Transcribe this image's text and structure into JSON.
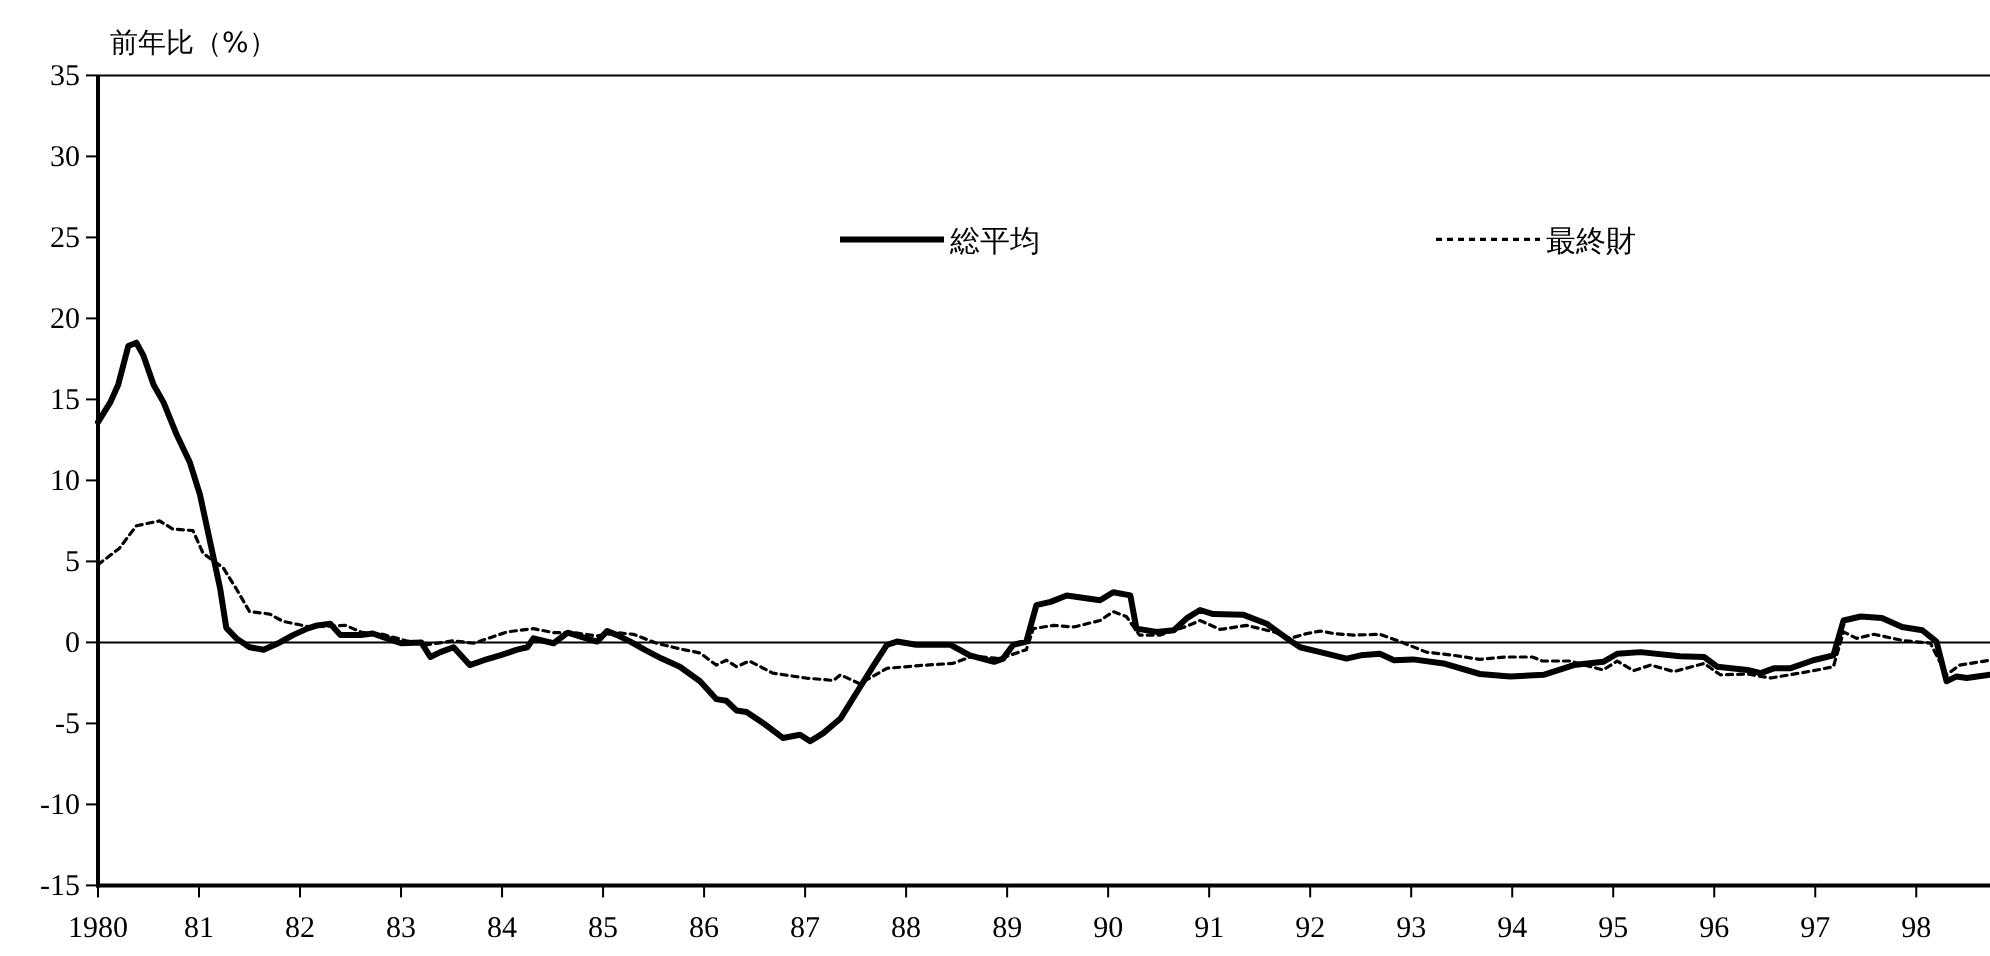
{
  "chart_data": {
    "type": "line",
    "ylabel": "前年比（%）",
    "xlim": [
      1980,
      1998.73
    ],
    "xticks": [
      1980,
      {
        "value": 1981,
        "label": "81"
      },
      {
        "value": 1982,
        "label": "82"
      },
      {
        "value": 1983,
        "label": "83"
      },
      {
        "value": 1984,
        "label": "84"
      },
      {
        "value": 1985,
        "label": "85"
      },
      {
        "value": 1986,
        "label": "86"
      },
      {
        "value": 1987,
        "label": "87"
      },
      {
        "value": 1988,
        "label": "88"
      },
      {
        "value": 1989,
        "label": "89"
      },
      {
        "value": 1990,
        "label": "90"
      },
      {
        "value": 1991,
        "label": "91"
      },
      {
        "value": 1992,
        "label": "92"
      },
      {
        "value": 1993,
        "label": "93"
      },
      {
        "value": 1994,
        "label": "94"
      },
      {
        "value": 1995,
        "label": "95"
      },
      {
        "value": 1996,
        "label": "96"
      },
      {
        "value": 1997,
        "label": "97"
      },
      {
        "value": 1998,
        "label": "98"
      }
    ],
    "ylim": [
      -15,
      35
    ],
    "yticks": [
      -15,
      -10,
      -5,
      0,
      5,
      10,
      15,
      20,
      25,
      30,
      35
    ],
    "grid": false,
    "legend": "top",
    "marker": "none",
    "ref_lines": [
      {
        "axis": "y",
        "value": 0
      }
    ],
    "series": [
      {
        "name": "総平均",
        "color": "#000000",
        "line_style": "solid",
        "x": [
          1980.0,
          1980.12,
          1980.2,
          1980.3,
          1980.38,
          1980.45,
          1980.55,
          1980.65,
          1980.78,
          1980.91,
          1981.01,
          1981.11,
          1981.21,
          1981.27,
          1981.37,
          1981.5,
          1981.64,
          1981.8,
          1981.93,
          1982.07,
          1982.17,
          1982.3,
          1982.4,
          1982.6,
          1982.72,
          1982.86,
          1983.0,
          1983.2,
          1983.29,
          1983.39,
          1983.52,
          1983.68,
          1983.82,
          1983.98,
          1984.15,
          1984.25,
          1984.31,
          1984.51,
          1984.65,
          1984.81,
          1984.94,
          1985.04,
          1985.14,
          1985.27,
          1985.41,
          1985.58,
          1985.76,
          1985.96,
          1986.12,
          1986.22,
          1986.32,
          1986.42,
          1986.59,
          1986.78,
          1986.95,
          1987.05,
          1987.18,
          1987.35,
          1987.54,
          1987.68,
          1987.81,
          1987.91,
          1988.1,
          1988.44,
          1988.63,
          1988.87,
          1988.96,
          1989.06,
          1989.19,
          1989.29,
          1989.43,
          1989.59,
          1989.92,
          1990.05,
          1990.22,
          1990.28,
          1990.48,
          1990.65,
          1990.78,
          1990.91,
          1991.04,
          1991.34,
          1991.57,
          1991.77,
          1991.9,
          1992.1,
          1992.36,
          1992.5,
          1992.69,
          1992.83,
          1993.02,
          1993.32,
          1993.68,
          1993.98,
          1994.31,
          1994.61,
          1994.9,
          1995.04,
          1995.27,
          1995.66,
          1995.9,
          1996.03,
          1996.33,
          1996.46,
          1996.59,
          1996.75,
          1996.98,
          1997.18,
          1997.28,
          1997.45,
          1997.66,
          1997.86,
          1998.06,
          1998.2,
          1998.3,
          1998.4,
          1998.5,
          1998.73
        ],
        "values": [
          13.6,
          14.8,
          15.9,
          18.3,
          18.5,
          17.7,
          15.9,
          14.8,
          12.8,
          11.1,
          9.1,
          6.2,
          3.3,
          0.9,
          0.25,
          -0.3,
          -0.45,
          0,
          0.45,
          0.85,
          1.05,
          1.15,
          0.45,
          0.45,
          0.55,
          0.25,
          -0.05,
          0,
          -0.9,
          -0.6,
          -0.3,
          -1.4,
          -1.1,
          -0.8,
          -0.45,
          -0.3,
          0.25,
          -0.05,
          0.6,
          0.3,
          0.05,
          0.7,
          0.45,
          0.05,
          -0.45,
          -1.0,
          -1.5,
          -2.4,
          -3.5,
          -3.6,
          -4.2,
          -4.3,
          -5.0,
          -5.9,
          -5.7,
          -6.1,
          -5.6,
          -4.7,
          -2.8,
          -1.4,
          -0.15,
          0.05,
          -0.15,
          -0.15,
          -0.8,
          -1.2,
          -1.0,
          -0.15,
          0.05,
          2.3,
          2.5,
          2.9,
          2.6,
          3.1,
          2.9,
          0.85,
          0.65,
          0.75,
          1.5,
          2.0,
          1.75,
          1.7,
          1.15,
          0.25,
          -0.3,
          -0.6,
          -1.0,
          -0.8,
          -0.7,
          -1.1,
          -1.05,
          -1.3,
          -1.95,
          -2.1,
          -2.0,
          -1.4,
          -1.2,
          -0.7,
          -0.6,
          -0.85,
          -0.9,
          -1.5,
          -1.7,
          -1.9,
          -1.6,
          -1.6,
          -1.1,
          -0.8,
          1.35,
          1.6,
          1.5,
          0.95,
          0.75,
          0.05,
          -2.4,
          -2.1,
          -2.2,
          -2.0
        ]
      },
      {
        "name": "最終財",
        "color": "#000000",
        "line_style": "dotted",
        "x": [
          1980.0,
          1980.21,
          1980.38,
          1980.61,
          1980.74,
          1980.94,
          1981.04,
          1981.24,
          1981.37,
          1981.5,
          1981.7,
          1981.83,
          1982.1,
          1982.45,
          1982.62,
          1982.82,
          1983.05,
          1983.25,
          1983.52,
          1983.72,
          1984.05,
          1984.31,
          1984.51,
          1984.71,
          1984.94,
          1985.14,
          1985.3,
          1985.53,
          1985.76,
          1985.96,
          1986.12,
          1986.22,
          1986.32,
          1986.45,
          1986.68,
          1987.01,
          1987.28,
          1987.35,
          1987.54,
          1987.81,
          1988.2,
          1988.46,
          1988.66,
          1988.93,
          1989.19,
          1989.26,
          1989.46,
          1989.66,
          1989.92,
          1990.05,
          1990.18,
          1990.31,
          1990.51,
          1990.78,
          1990.91,
          1991.11,
          1991.37,
          1991.64,
          1991.8,
          1991.97,
          1992.1,
          1992.23,
          1992.43,
          1992.69,
          1992.89,
          1993.15,
          1993.42,
          1993.68,
          1993.94,
          1994.2,
          1994.3,
          1994.57,
          1994.9,
          1995.04,
          1995.2,
          1995.37,
          1995.6,
          1995.9,
          1996.06,
          1996.33,
          1996.56,
          1996.98,
          1997.18,
          1997.28,
          1997.41,
          1997.58,
          1997.88,
          1998.14,
          1998.3,
          1998.43,
          1998.73
        ],
        "values": [
          4.8,
          5.8,
          7.2,
          7.5,
          7.0,
          6.9,
          5.5,
          4.6,
          3.3,
          1.9,
          1.75,
          1.3,
          0.95,
          1.05,
          0.6,
          0.5,
          0.1,
          -0.15,
          0.1,
          -0.05,
          0.65,
          0.85,
          0.6,
          0.6,
          0.4,
          0.6,
          0.5,
          -0.05,
          -0.4,
          -0.65,
          -1.4,
          -1.1,
          -1.5,
          -1.15,
          -1.9,
          -2.2,
          -2.35,
          -2.0,
          -2.55,
          -1.6,
          -1.4,
          -1.3,
          -0.85,
          -1.0,
          -0.45,
          0.85,
          1.05,
          0.95,
          1.35,
          1.9,
          1.6,
          0.45,
          0.45,
          1.0,
          1.35,
          0.8,
          1.05,
          0.65,
          0.25,
          0.55,
          0.7,
          0.55,
          0.45,
          0.5,
          0.05,
          -0.6,
          -0.8,
          -1.05,
          -0.9,
          -0.9,
          -1.15,
          -1.15,
          -1.7,
          -1.15,
          -1.75,
          -1.4,
          -1.8,
          -1.3,
          -2.0,
          -1.95,
          -2.2,
          -1.75,
          -1.5,
          0.65,
          0.25,
          0.5,
          0.1,
          -0.05,
          -2.0,
          -1.4,
          -1.1
        ]
      }
    ]
  }
}
